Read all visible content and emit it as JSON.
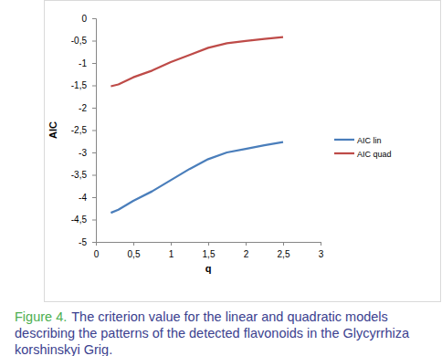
{
  "chart_data": {
    "type": "line",
    "x_label": "q",
    "y_label": "AIC",
    "x": [
      0.2,
      0.3,
      0.5,
      0.75,
      1.0,
      1.25,
      1.5,
      1.75,
      2.0,
      2.25,
      2.5
    ],
    "series": [
      {
        "name": "AIC lin",
        "color": "#4a7ebb",
        "values": [
          -4.35,
          -4.28,
          -4.08,
          -3.87,
          -3.62,
          -3.37,
          -3.15,
          -3.0,
          -2.92,
          -2.84,
          -2.77
        ]
      },
      {
        "name": "AIC quad",
        "color": "#be4b48",
        "values": [
          -1.52,
          -1.48,
          -1.32,
          -1.17,
          -0.98,
          -0.82,
          -0.66,
          -0.56,
          -0.51,
          -0.46,
          -0.42
        ]
      }
    ],
    "xlim": [
      0,
      3
    ],
    "xticks": [
      0,
      {
        "value": 0.5,
        "label": "0,5"
      },
      1,
      {
        "value": 1.5,
        "label": "1,5"
      },
      2,
      {
        "value": 2.5,
        "label": "2,5"
      },
      3
    ],
    "ylim": [
      -5,
      0
    ],
    "yticks": [
      0,
      {
        "value": -0.5,
        "label": "-0,5"
      },
      -1,
      {
        "value": -1.5,
        "label": "-1,5"
      },
      -2,
      {
        "value": -2.5,
        "label": "-2,5"
      },
      -3,
      {
        "value": -3.5,
        "label": "-3,5"
      },
      -4,
      {
        "value": -4.5,
        "label": "-4,5"
      },
      -5
    ],
    "grid": false,
    "legend": "right",
    "caption_label": "Figure 4.",
    "caption_lines": [
      "The criterion value for the linear and quadratic models",
      "describing the patterns of the detected flavonoids in the Glycyrrhiza",
      "korshinskyi Grig."
    ]
  }
}
